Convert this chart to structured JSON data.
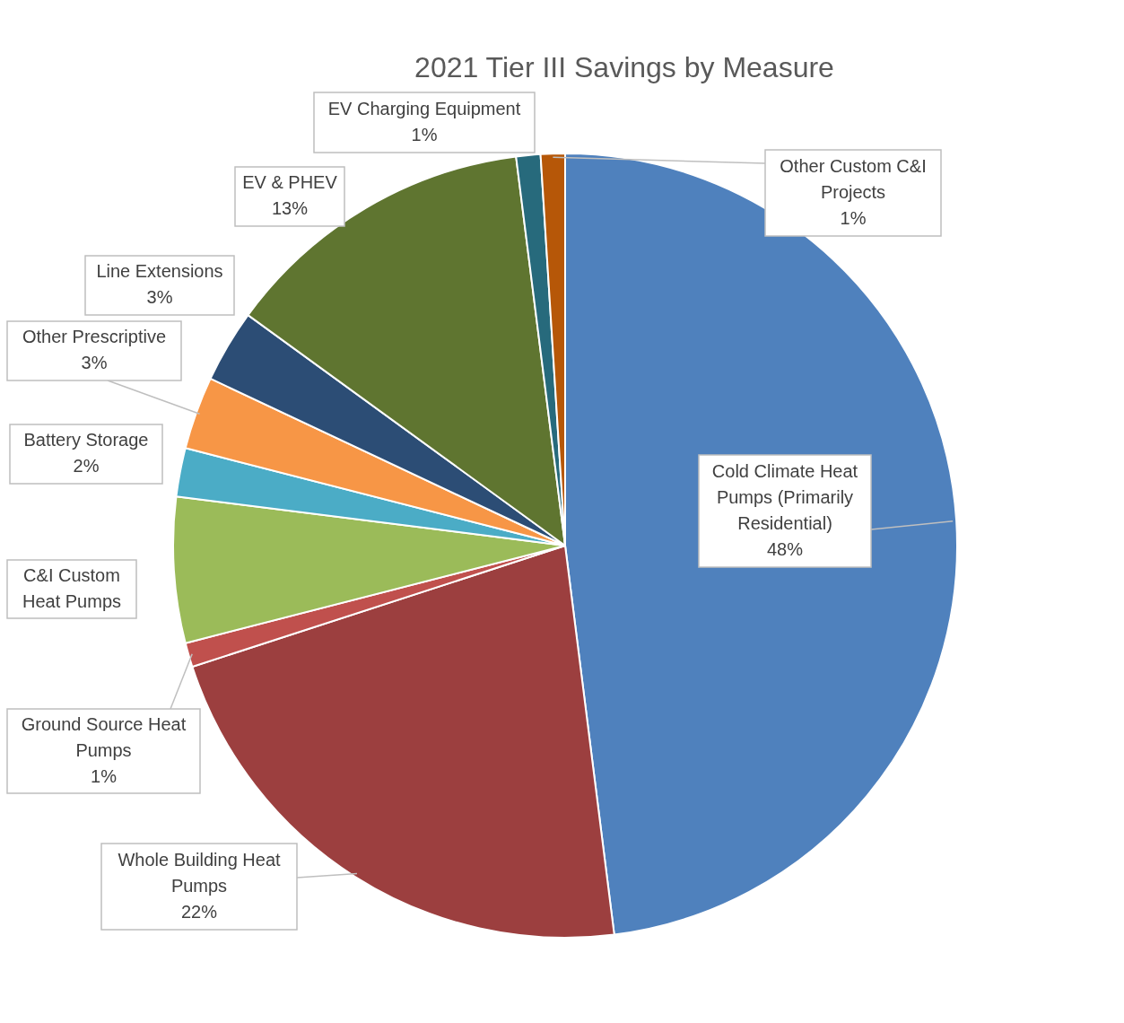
{
  "chart_data": {
    "type": "pie",
    "title": "2021 Tier III Savings by Measure",
    "categories": [
      "Cold Climate Heat Pumps (Primarily Residential)",
      "Whole Building Heat Pumps",
      "Ground Source Heat Pumps",
      "C&I Custom Heat Pumps",
      "Battery Storage",
      "Other Prescriptive",
      "Line Extensions",
      "EV & PHEV",
      "EV Charging Equipment",
      "Other Custom C&I Projects"
    ],
    "values": [
      48,
      22,
      1,
      6,
      2,
      3,
      3,
      13,
      1,
      1
    ],
    "value_labels": [
      "48%",
      "22%",
      "1%",
      null,
      "2%",
      "3%",
      "3%",
      "13%",
      "1%",
      "1%"
    ],
    "colors": [
      "#4f81bd",
      "#9c3f3f",
      "#c0504d",
      "#9bbb59",
      "#4bacc6",
      "#f79646",
      "#2c4d75",
      "#5f7530",
      "#276a7c",
      "#b65708"
    ],
    "legend": false
  }
}
